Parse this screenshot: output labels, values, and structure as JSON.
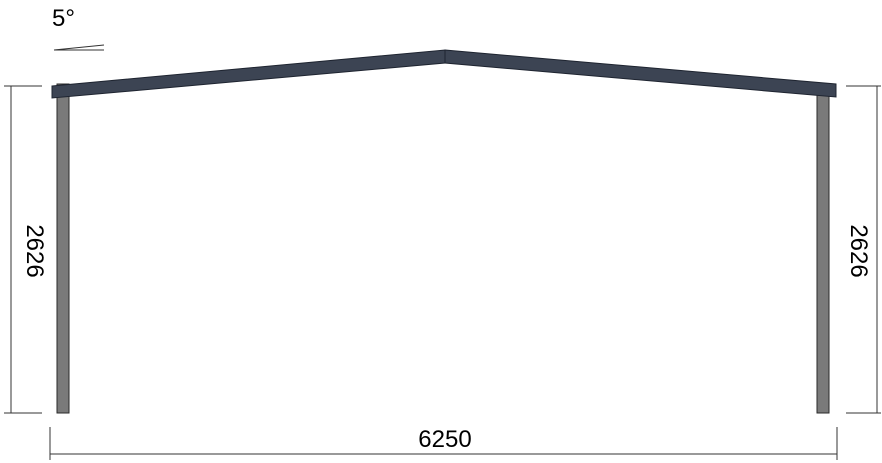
{
  "diagram": {
    "pitch_label": "5°",
    "span_label": "6250",
    "left_height_label": "2626",
    "right_height_label": "2626"
  },
  "colors": {
    "rafter": "#3c4453",
    "rafter_edge": "#1e2430",
    "column": "#7a7a7a",
    "column_edge": "#2a2a2a",
    "dimension": "#333333"
  }
}
